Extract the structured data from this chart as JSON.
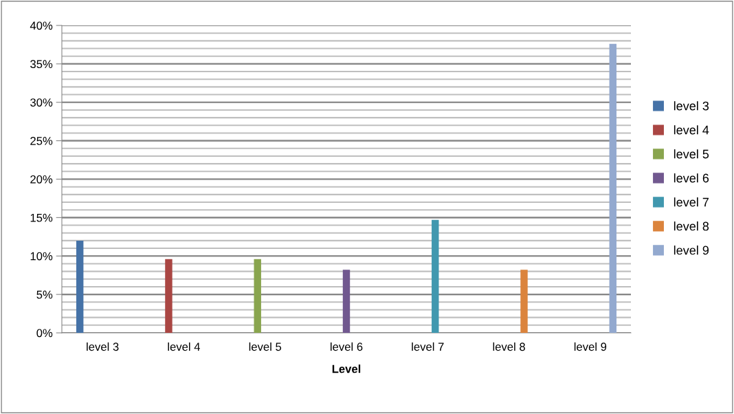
{
  "chart_data": {
    "type": "bar",
    "xlabel": "Level",
    "categories": [
      "level 3",
      "level 4",
      "level 5",
      "level 6",
      "level 7",
      "level 8",
      "level 9"
    ],
    "series": [
      {
        "name": "level 3",
        "color": "#4572a7",
        "values": [
          12.0,
          null,
          null,
          null,
          null,
          null,
          null
        ]
      },
      {
        "name": "level 4",
        "color": "#aa4643",
        "values": [
          null,
          9.6,
          null,
          null,
          null,
          null,
          null
        ]
      },
      {
        "name": "level 5",
        "color": "#89a54e",
        "values": [
          null,
          null,
          9.6,
          null,
          null,
          null,
          null
        ]
      },
      {
        "name": "level 6",
        "color": "#71588f",
        "values": [
          null,
          null,
          null,
          8.2,
          null,
          null,
          null
        ]
      },
      {
        "name": "level 7",
        "color": "#4198af",
        "values": [
          null,
          null,
          null,
          null,
          14.7,
          null,
          null
        ]
      },
      {
        "name": "level 8",
        "color": "#db843d",
        "values": [
          null,
          null,
          null,
          null,
          null,
          8.2,
          null
        ]
      },
      {
        "name": "level 9",
        "color": "#93a9cf",
        "values": [
          null,
          null,
          null,
          null,
          null,
          null,
          37.6
        ]
      }
    ],
    "ylim": [
      0,
      40
    ],
    "yticks": [
      {
        "value": 0,
        "label": "0%"
      },
      {
        "value": 5,
        "label": "5%"
      },
      {
        "value": 10,
        "label": "10%"
      },
      {
        "value": 15,
        "label": "15%"
      },
      {
        "value": 20,
        "label": "20%"
      },
      {
        "value": 25,
        "label": "25%"
      },
      {
        "value": 30,
        "label": "30%"
      },
      {
        "value": 35,
        "label": "35%"
      },
      {
        "value": 40,
        "label": "40%"
      }
    ],
    "grid": "y",
    "legend": "right"
  }
}
